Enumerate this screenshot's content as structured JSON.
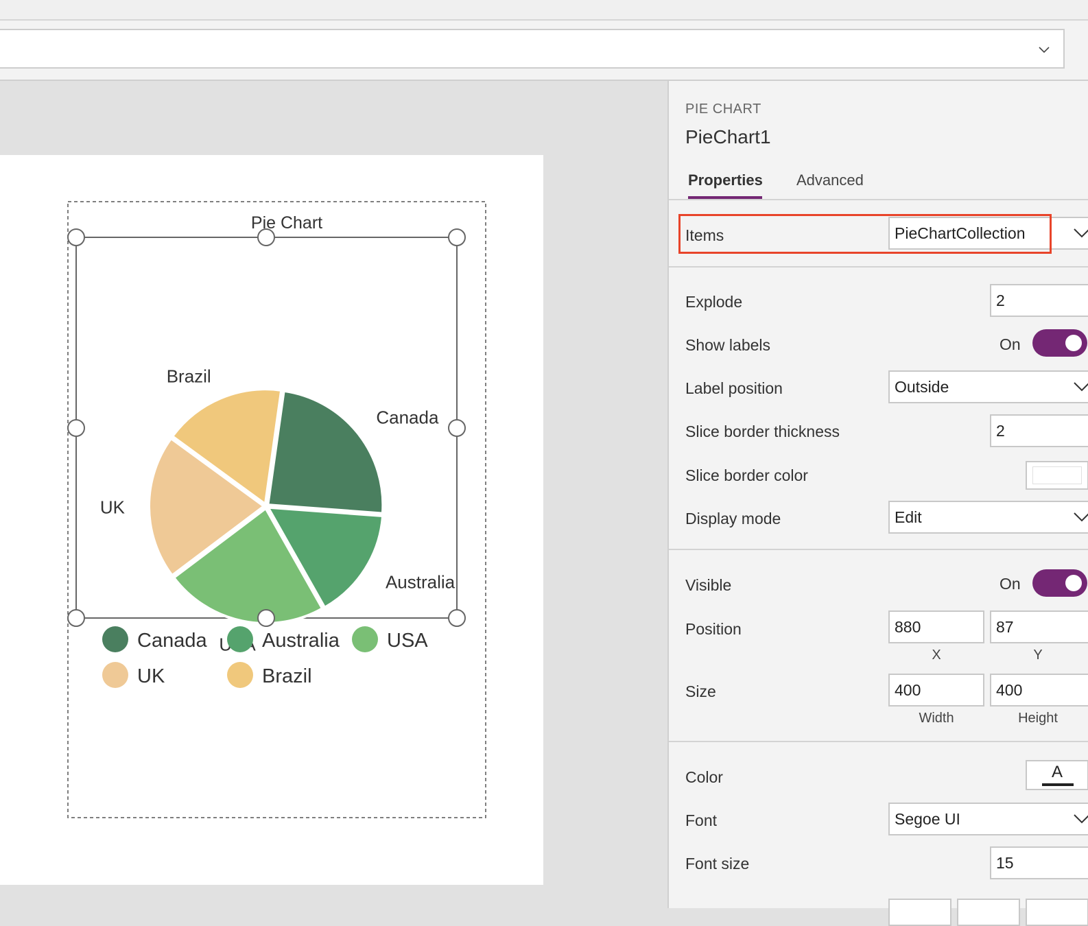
{
  "panel": {
    "control_type": "PIE CHART",
    "control_name": "PieChart1",
    "tabs": [
      {
        "label": "Properties",
        "active": true
      },
      {
        "label": "Advanced",
        "active": false
      }
    ],
    "properties": {
      "items": {
        "label": "Items",
        "value": "PieChartCollection"
      },
      "explode": {
        "label": "Explode",
        "value": "2"
      },
      "show_labels": {
        "label": "Show labels",
        "state": "On"
      },
      "label_position": {
        "label": "Label position",
        "value": "Outside"
      },
      "slice_border_thickness": {
        "label": "Slice border thickness",
        "value": "2"
      },
      "slice_border_color": {
        "label": "Slice border color",
        "value": "#ffffff"
      },
      "display_mode": {
        "label": "Display mode",
        "value": "Edit"
      },
      "visible": {
        "label": "Visible",
        "state": "On"
      },
      "position": {
        "label": "Position",
        "x": "880",
        "y": "87",
        "x_label": "X",
        "y_label": "Y"
      },
      "size": {
        "label": "Size",
        "width": "400",
        "height": "400",
        "width_label": "Width",
        "height_label": "Height"
      },
      "color": {
        "label": "Color",
        "glyph": "A"
      },
      "font": {
        "label": "Font",
        "value": "Segoe UI"
      },
      "font_size": {
        "label": "Font size",
        "value": "15"
      }
    }
  },
  "colors": {
    "accent": "#742774",
    "highlight": "#e8442a",
    "canada": "#4a7f5f",
    "australia": "#55a36d",
    "usa": "#7abf75",
    "uk": "#efc996",
    "brazil": "#f0c87c"
  },
  "chart_data": {
    "type": "pie",
    "title": "Pie Chart",
    "slices": [
      {
        "label": "Canada",
        "value": 23,
        "color": "#4a7f5f"
      },
      {
        "label": "Australia",
        "value": 15,
        "color": "#55a36d"
      },
      {
        "label": "USA",
        "value": 22,
        "color": "#7abf75"
      },
      {
        "label": "UK",
        "value": 19.5,
        "color": "#efc996"
      },
      {
        "label": "Brazil",
        "value": 16.5,
        "color": "#f0c87c"
      }
    ],
    "legend": [
      "Canada",
      "Australia",
      "USA",
      "UK",
      "Brazil"
    ],
    "legend_placement": "bottom"
  }
}
